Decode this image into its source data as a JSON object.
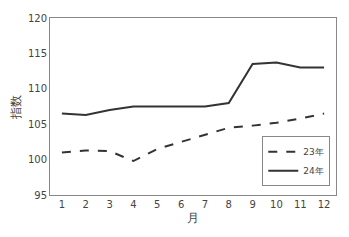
{
  "chart_data": {
    "type": "line",
    "x": [
      1,
      2,
      3,
      4,
      5,
      6,
      7,
      8,
      9,
      10,
      11,
      12
    ],
    "series": [
      {
        "name": "23年",
        "color": "#333333",
        "line_style": "dashed",
        "values": [
          101.0,
          101.3,
          101.2,
          99.8,
          101.5,
          102.5,
          103.5,
          104.5,
          104.8,
          105.2,
          105.8,
          106.5
        ]
      },
      {
        "name": "24年",
        "color": "#333333",
        "line_style": "solid",
        "values": [
          106.5,
          106.3,
          107.0,
          107.5,
          107.5,
          107.5,
          107.5,
          108.0,
          113.5,
          113.7,
          113.0,
          113.0
        ]
      }
    ],
    "xlim": [
      0.5,
      12.5
    ],
    "xticks": [
      1,
      2,
      3,
      4,
      5,
      6,
      7,
      8,
      9,
      10,
      11,
      12
    ],
    "ylim": [
      95,
      120
    ],
    "yticks": [
      95,
      100,
      105,
      110,
      115,
      120
    ],
    "xlabel": "月",
    "ylabel": "指数",
    "grid": false,
    "legend": "lower right"
  }
}
